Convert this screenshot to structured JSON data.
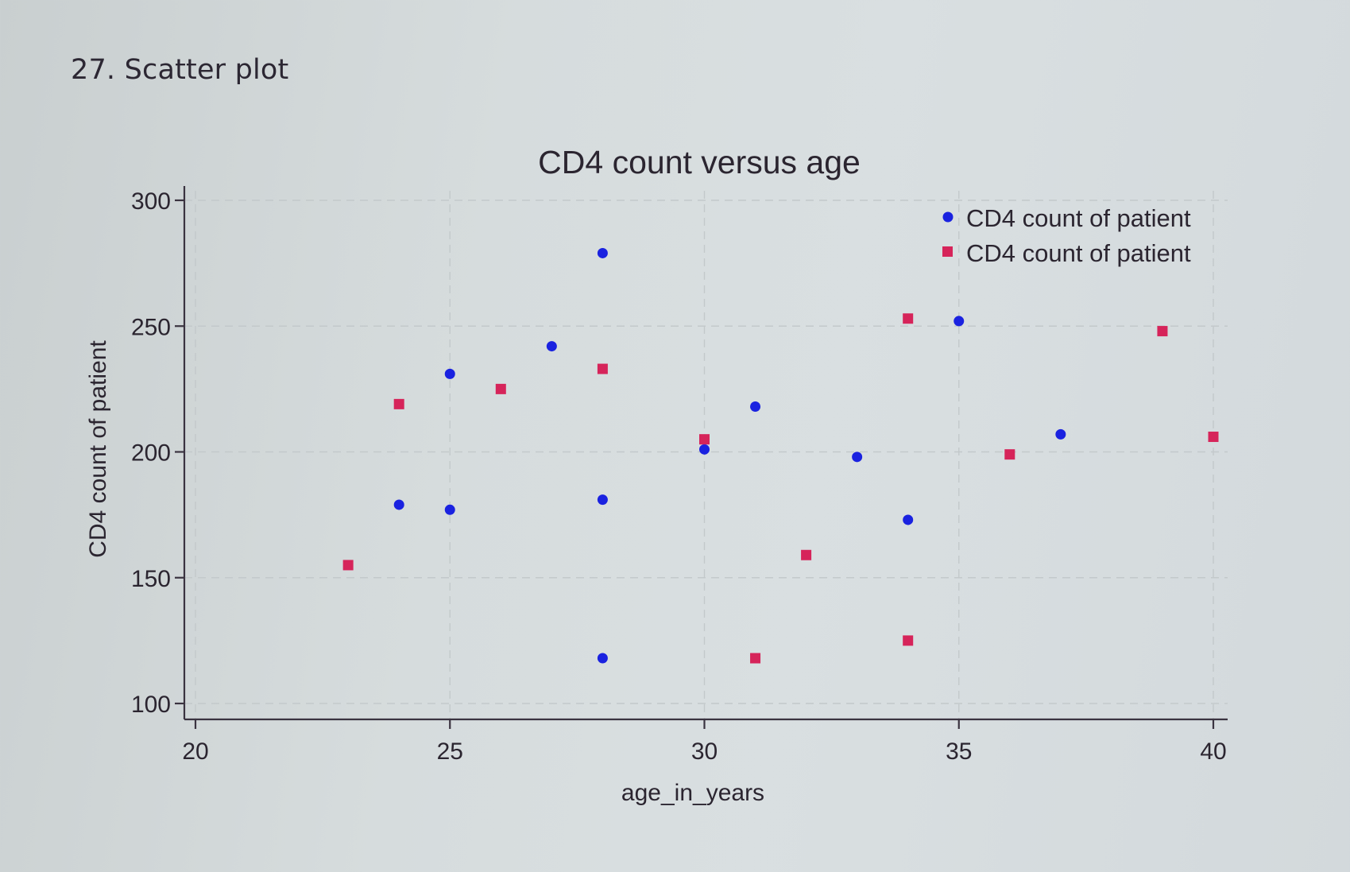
{
  "page": {
    "heading": "27. Scatter plot"
  },
  "chart_data": {
    "type": "scatter",
    "title": "CD4 count versus age",
    "xlabel": "age_in_years",
    "ylabel": "CD4 count of patient",
    "xlim": [
      20,
      40
    ],
    "ylim": [
      100,
      300
    ],
    "xticks": [
      20,
      25,
      30,
      35,
      40
    ],
    "yticks": [
      100,
      150,
      200,
      250,
      300
    ],
    "grid": true,
    "legend_position": "top-right",
    "series": [
      {
        "name": "CD4 count of patient",
        "marker": "circle",
        "color": "#1a22e0",
        "points": [
          {
            "x": 24,
            "y": 179
          },
          {
            "x": 25,
            "y": 177
          },
          {
            "x": 25,
            "y": 231
          },
          {
            "x": 27,
            "y": 242
          },
          {
            "x": 28,
            "y": 279
          },
          {
            "x": 28,
            "y": 181
          },
          {
            "x": 28,
            "y": 118
          },
          {
            "x": 30,
            "y": 201
          },
          {
            "x": 31,
            "y": 218
          },
          {
            "x": 33,
            "y": 198
          },
          {
            "x": 34,
            "y": 173
          },
          {
            "x": 35,
            "y": 252
          },
          {
            "x": 37,
            "y": 207
          }
        ]
      },
      {
        "name": "CD4 count of patient",
        "marker": "square",
        "color": "#d6245a",
        "points": [
          {
            "x": 23,
            "y": 155
          },
          {
            "x": 24,
            "y": 219
          },
          {
            "x": 26,
            "y": 225
          },
          {
            "x": 28,
            "y": 233
          },
          {
            "x": 30,
            "y": 205
          },
          {
            "x": 31,
            "y": 118
          },
          {
            "x": 32,
            "y": 159
          },
          {
            "x": 34,
            "y": 253
          },
          {
            "x": 34,
            "y": 125
          },
          {
            "x": 36,
            "y": 199
          },
          {
            "x": 39,
            "y": 248
          },
          {
            "x": 40,
            "y": 206
          }
        ]
      }
    ]
  }
}
